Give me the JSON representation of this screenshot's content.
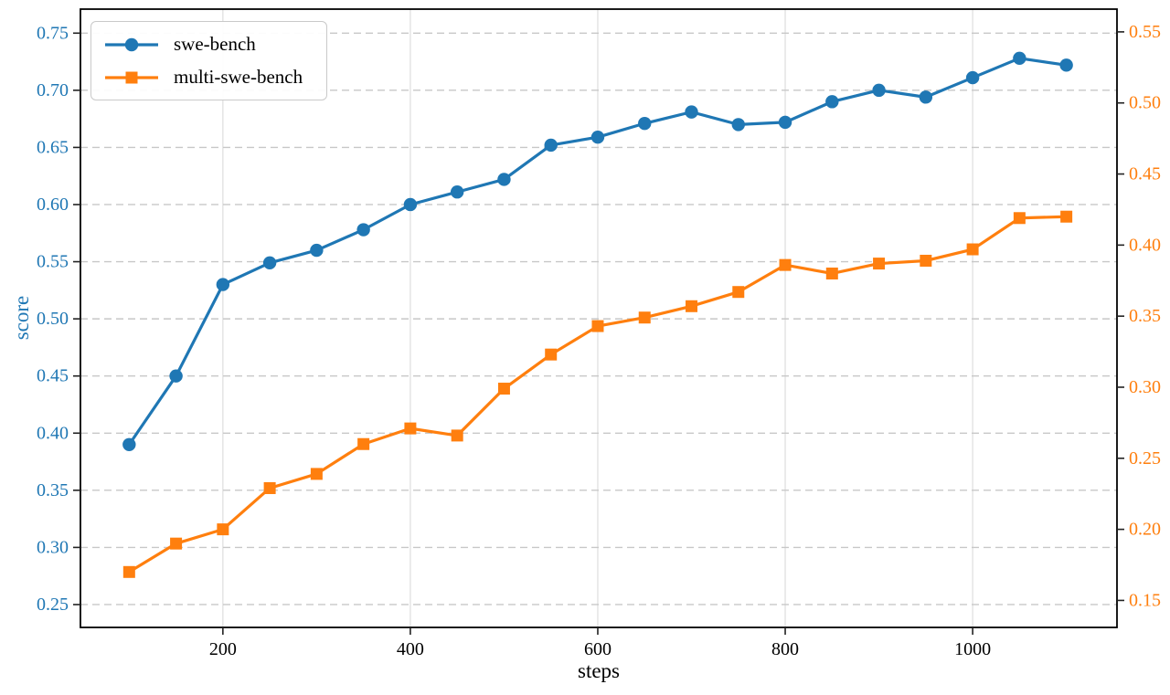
{
  "chart_data": {
    "type": "line",
    "title": "",
    "xlabel": "steps",
    "ylabel": "score",
    "x": [
      100,
      150,
      200,
      250,
      300,
      350,
      400,
      450,
      500,
      550,
      600,
      650,
      700,
      750,
      800,
      850,
      900,
      950,
      1000,
      1050,
      1100
    ],
    "series": [
      {
        "name": "swe-bench",
        "axis": "left",
        "marker": "circle",
        "color": "#1f77b4",
        "values": [
          0.39,
          0.45,
          0.53,
          0.549,
          0.56,
          0.578,
          0.6,
          0.611,
          0.622,
          0.652,
          0.659,
          0.671,
          0.681,
          0.67,
          0.672,
          0.69,
          0.7,
          0.694,
          0.711,
          0.728,
          0.722
        ]
      },
      {
        "name": "multi-swe-bench",
        "axis": "right",
        "marker": "square",
        "color": "#ff7f0e",
        "values": [
          0.17,
          0.19,
          0.2,
          0.229,
          0.239,
          0.26,
          0.271,
          0.266,
          0.299,
          0.323,
          0.343,
          0.349,
          0.357,
          0.367,
          0.386,
          0.38,
          0.387,
          0.389,
          0.397,
          0.419,
          0.42
        ]
      }
    ],
    "x_ticks": [
      200,
      400,
      600,
      800,
      1000
    ],
    "left_ticks": [
      0.25,
      0.3,
      0.35,
      0.4,
      0.45,
      0.5,
      0.55,
      0.6,
      0.65,
      0.7,
      0.75
    ],
    "right_ticks": [
      0.15,
      0.2,
      0.25,
      0.3,
      0.35,
      0.4,
      0.45,
      0.5,
      0.55
    ],
    "xlim": [
      48,
      1154
    ],
    "ylim_left": [
      0.23,
      0.771
    ],
    "ylim_right": [
      0.131,
      0.566
    ],
    "grid": true,
    "legend_position": "upper left",
    "left_tick_color": "#1f77b4",
    "right_tick_color": "#ff7f0e"
  },
  "legend": {
    "items": [
      {
        "label": "swe-bench",
        "marker": "circle",
        "color": "#1f77b4"
      },
      {
        "label": "multi-swe-bench",
        "marker": "square",
        "color": "#ff7f0e"
      }
    ]
  }
}
